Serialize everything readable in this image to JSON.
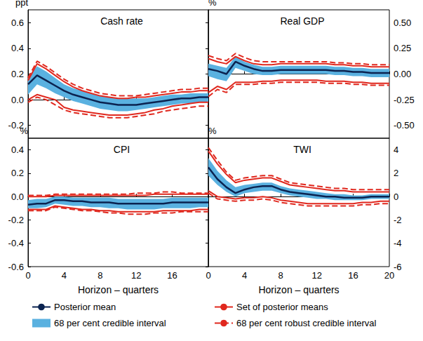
{
  "chart_data": [
    {
      "type": "line",
      "title": "Cash rate",
      "ylabel": "ppt",
      "legend": "bottom",
      "grid": false,
      "tick_labels": "y",
      "x": [
        0,
        1,
        2,
        3,
        4,
        5,
        6,
        7,
        8,
        9,
        10,
        11,
        12,
        13,
        14,
        15,
        16,
        17,
        18,
        19,
        20
      ],
      "xlim": [
        0,
        20
      ],
      "xticks": [
        0,
        4,
        8,
        12,
        16
      ],
      "ylim": [
        -0.3,
        0.7
      ],
      "yticks": [
        0.6,
        0.4,
        0.2,
        {
          "value": 0,
          "label": "0.0"
        },
        -0.2
      ],
      "series": [
        {
          "name": "Posterior mean",
          "type": "line",
          "color": "#0b2350",
          "line_style": "solid",
          "values": [
            0.12,
            0.19,
            0.15,
            0.11,
            0.07,
            0.04,
            0.02,
            0.0,
            -0.02,
            -0.03,
            -0.04,
            -0.04,
            -0.04,
            -0.03,
            -0.02,
            -0.01,
            0.0,
            0.01,
            0.01,
            0.02,
            0.02
          ]
        },
        {
          "name": "68 per cent credible interval",
          "type": "area",
          "color": "#5ab1e0",
          "lower": [
            0.04,
            0.12,
            0.09,
            0.05,
            0.02,
            -0.01,
            -0.03,
            -0.05,
            -0.07,
            -0.08,
            -0.09,
            -0.09,
            -0.08,
            -0.07,
            -0.06,
            -0.05,
            -0.04,
            -0.03,
            -0.03,
            -0.02,
            -0.02
          ],
          "upper": [
            0.18,
            0.26,
            0.22,
            0.17,
            0.12,
            0.09,
            0.07,
            0.05,
            0.03,
            0.02,
            0.01,
            0.01,
            0.01,
            0.01,
            0.02,
            0.03,
            0.04,
            0.04,
            0.05,
            0.05,
            0.05
          ]
        },
        {
          "name": "Set of posterior means",
          "type": "bounds",
          "color": "#e0281e",
          "line_style": "solid",
          "lower": [
            0.0,
            0.04,
            0.02,
            0.0,
            -0.06,
            -0.08,
            -0.09,
            -0.1,
            -0.11,
            -0.12,
            -0.12,
            -0.12,
            -0.11,
            -0.1,
            -0.08,
            -0.07,
            -0.05,
            -0.04,
            -0.03,
            -0.02,
            -0.02
          ],
          "upper": [
            0.15,
            0.28,
            0.24,
            0.19,
            0.14,
            0.1,
            0.07,
            0.05,
            0.03,
            0.02,
            0.01,
            0.01,
            0.02,
            0.02,
            0.03,
            0.04,
            0.05,
            0.06,
            0.06,
            0.07,
            0.07
          ]
        },
        {
          "name": "68 per cent robust credible interval",
          "type": "bounds",
          "color": "#e0281e",
          "line_style": "dashed",
          "lower": [
            -0.02,
            0.02,
            0.0,
            -0.04,
            -0.08,
            -0.1,
            -0.11,
            -0.12,
            -0.13,
            -0.14,
            -0.14,
            -0.14,
            -0.13,
            -0.12,
            -0.11,
            -0.09,
            -0.08,
            -0.07,
            -0.06,
            -0.05,
            -0.05
          ],
          "upper": [
            0.17,
            0.3,
            0.26,
            0.21,
            0.16,
            0.12,
            0.09,
            0.07,
            0.05,
            0.04,
            0.03,
            0.03,
            0.03,
            0.04,
            0.05,
            0.06,
            0.07,
            0.08,
            0.08,
            0.09,
            0.09
          ]
        }
      ]
    },
    {
      "type": "line",
      "title": "Real GDP",
      "ylabel": "%",
      "legend": "bottom",
      "grid": false,
      "tick_labels": "y",
      "x": [
        0,
        1,
        2,
        3,
        4,
        5,
        6,
        7,
        8,
        9,
        10,
        11,
        12,
        13,
        14,
        15,
        16,
        17,
        18,
        19,
        20
      ],
      "xlim": [
        0,
        20
      ],
      "xticks": [
        0,
        4,
        8,
        12,
        16,
        20
      ],
      "ylim": [
        -0.625,
        0.625
      ],
      "yticks": [
        {
          "value": 0.5,
          "label": "0.50"
        },
        0.25,
        {
          "value": 0,
          "label": "0.00"
        },
        -0.25,
        {
          "value": -0.5,
          "label": "-0.50"
        }
      ],
      "series": [
        {
          "name": "Posterior mean",
          "type": "line",
          "color": "#0b2350",
          "line_style": "solid",
          "values": [
            0.05,
            0.03,
            0.0,
            0.12,
            0.08,
            0.05,
            0.03,
            0.03,
            0.04,
            0.04,
            0.04,
            0.04,
            0.04,
            0.04,
            0.03,
            0.03,
            0.02,
            0.02,
            0.01,
            0.01,
            0.01
          ]
        },
        {
          "name": "68 per cent credible interval",
          "type": "area",
          "color": "#5ab1e0",
          "lower": [
            -0.02,
            -0.05,
            -0.07,
            0.06,
            0.03,
            0.0,
            -0.01,
            -0.01,
            0.0,
            0.0,
            0.0,
            0.0,
            0.0,
            0.0,
            -0.01,
            -0.01,
            -0.02,
            -0.02,
            -0.03,
            -0.03,
            -0.03
          ],
          "upper": [
            0.1,
            0.08,
            0.06,
            0.17,
            0.12,
            0.09,
            0.07,
            0.07,
            0.08,
            0.08,
            0.08,
            0.08,
            0.08,
            0.08,
            0.07,
            0.07,
            0.06,
            0.06,
            0.05,
            0.05,
            0.05
          ]
        },
        {
          "name": "Set of posterior means",
          "type": "bounds",
          "color": "#e0281e",
          "line_style": "solid",
          "lower": [
            -0.18,
            -0.12,
            -0.15,
            -0.08,
            -0.08,
            -0.08,
            -0.07,
            -0.07,
            -0.06,
            -0.06,
            -0.06,
            -0.06,
            -0.06,
            -0.07,
            -0.07,
            -0.07,
            -0.08,
            -0.08,
            -0.09,
            -0.09,
            -0.09
          ],
          "upper": [
            0.15,
            0.12,
            0.1,
            0.17,
            0.13,
            0.1,
            0.09,
            0.09,
            0.1,
            0.1,
            0.1,
            0.1,
            0.1,
            0.1,
            0.09,
            0.09,
            0.08,
            0.08,
            0.07,
            0.07,
            0.07
          ]
        },
        {
          "name": "68 per cent robust credible interval",
          "type": "bounds",
          "color": "#e0281e",
          "line_style": "dashed",
          "lower": [
            -0.22,
            -0.15,
            -0.18,
            -0.1,
            -0.1,
            -0.1,
            -0.09,
            -0.09,
            -0.08,
            -0.08,
            -0.08,
            -0.08,
            -0.08,
            -0.09,
            -0.09,
            -0.09,
            -0.1,
            -0.1,
            -0.11,
            -0.11,
            -0.11
          ],
          "upper": [
            0.18,
            0.15,
            0.13,
            0.2,
            0.16,
            0.13,
            0.12,
            0.12,
            0.12,
            0.12,
            0.12,
            0.12,
            0.12,
            0.12,
            0.11,
            0.11,
            0.1,
            0.1,
            0.09,
            0.09,
            0.09
          ]
        }
      ]
    },
    {
      "type": "line",
      "title": "CPI",
      "ylabel": "%",
      "xlabel": "Horizon – quarters",
      "legend": "bottom",
      "grid": false,
      "x": [
        0,
        1,
        2,
        3,
        4,
        5,
        6,
        7,
        8,
        9,
        10,
        11,
        12,
        13,
        14,
        15,
        16,
        17,
        18,
        19,
        20
      ],
      "xlim": [
        0,
        20
      ],
      "xticks": [
        0,
        4,
        8,
        12,
        16
      ],
      "ylim": [
        -0.6,
        0.5
      ],
      "yticks": [
        0.4,
        0.2,
        {
          "value": 0,
          "label": "0.0"
        },
        -0.2,
        -0.4,
        -0.6
      ],
      "series": [
        {
          "name": "Posterior mean",
          "type": "line",
          "color": "#0b2350",
          "line_style": "solid",
          "values": [
            -0.07,
            -0.06,
            -0.06,
            -0.03,
            -0.03,
            -0.04,
            -0.04,
            -0.05,
            -0.05,
            -0.05,
            -0.06,
            -0.06,
            -0.06,
            -0.06,
            -0.06,
            -0.06,
            -0.05,
            -0.05,
            -0.05,
            -0.05,
            -0.05
          ]
        },
        {
          "name": "68 per cent credible interval",
          "type": "area",
          "color": "#5ab1e0",
          "lower": [
            -0.1,
            -0.1,
            -0.09,
            -0.06,
            -0.07,
            -0.08,
            -0.08,
            -0.09,
            -0.09,
            -0.1,
            -0.1,
            -0.11,
            -0.11,
            -0.11,
            -0.11,
            -0.1,
            -0.1,
            -0.1,
            -0.1,
            -0.09,
            -0.09
          ],
          "upper": [
            -0.03,
            -0.02,
            -0.02,
            0.0,
            0.0,
            -0.01,
            -0.01,
            -0.01,
            -0.01,
            -0.01,
            -0.02,
            -0.02,
            -0.02,
            -0.02,
            -0.02,
            -0.02,
            -0.01,
            -0.01,
            -0.01,
            -0.01,
            -0.01
          ]
        },
        {
          "name": "Set of posterior means",
          "type": "bounds",
          "color": "#e0281e",
          "line_style": "solid",
          "lower": [
            -0.11,
            -0.11,
            -0.11,
            -0.08,
            -0.09,
            -0.1,
            -0.11,
            -0.11,
            -0.12,
            -0.12,
            -0.13,
            -0.13,
            -0.13,
            -0.13,
            -0.13,
            -0.12,
            -0.12,
            -0.12,
            -0.12,
            -0.11,
            -0.11
          ],
          "upper": [
            0.0,
            0.0,
            0.0,
            0.01,
            0.01,
            0.01,
            0.01,
            0.01,
            0.01,
            0.01,
            0.01,
            0.01,
            0.01,
            0.01,
            0.02,
            0.02,
            0.02,
            0.02,
            0.02,
            0.02,
            0.02
          ]
        },
        {
          "name": "68 per cent robust credible interval",
          "type": "bounds",
          "color": "#e0281e",
          "line_style": "dashed",
          "lower": [
            -0.12,
            -0.12,
            -0.12,
            -0.09,
            -0.1,
            -0.11,
            -0.12,
            -0.12,
            -0.13,
            -0.14,
            -0.14,
            -0.15,
            -0.15,
            -0.15,
            -0.14,
            -0.14,
            -0.14,
            -0.13,
            -0.13,
            -0.13,
            -0.13
          ],
          "upper": [
            0.01,
            0.01,
            0.01,
            0.02,
            0.02,
            0.02,
            0.02,
            0.02,
            0.02,
            0.02,
            0.02,
            0.02,
            0.03,
            0.03,
            0.03,
            0.04,
            0.04,
            0.03,
            0.03,
            0.03,
            0.03
          ]
        }
      ]
    },
    {
      "type": "line",
      "title": "TWI",
      "ylabel": "%",
      "xlabel": "Horizon – quarters",
      "legend": "bottom",
      "grid": false,
      "x": [
        0,
        1,
        2,
        3,
        4,
        5,
        6,
        7,
        8,
        9,
        10,
        11,
        12,
        13,
        14,
        15,
        16,
        17,
        18,
        19,
        20
      ],
      "xlim": [
        0,
        20
      ],
      "xticks": [
        0,
        4,
        8,
        12,
        16,
        20
      ],
      "ylim": [
        -6,
        5
      ],
      "yticks": [
        4,
        2,
        0,
        -2,
        -4,
        -6
      ],
      "series": [
        {
          "name": "Posterior mean",
          "type": "line",
          "color": "#0b2350",
          "line_style": "solid",
          "values": [
            2.5,
            1.5,
            0.8,
            0.3,
            0.6,
            0.8,
            0.9,
            0.9,
            0.6,
            0.4,
            0.3,
            0.2,
            0.1,
            0.0,
            0.0,
            -0.1,
            -0.1,
            -0.1,
            0.0,
            0.0,
            0.0
          ]
        },
        {
          "name": "68 per cent credible interval",
          "type": "area",
          "color": "#5ab1e0",
          "lower": [
            1.8,
            1.0,
            0.4,
            0.0,
            0.3,
            0.4,
            0.5,
            0.5,
            0.3,
            0.1,
            0.0,
            -0.1,
            -0.2,
            -0.2,
            -0.3,
            -0.3,
            -0.3,
            -0.3,
            -0.2,
            -0.2,
            -0.2
          ],
          "upper": [
            3.3,
            2.2,
            1.4,
            0.8,
            1.0,
            1.1,
            1.2,
            1.2,
            0.9,
            0.7,
            0.6,
            0.5,
            0.4,
            0.3,
            0.2,
            0.2,
            0.1,
            0.1,
            0.2,
            0.2,
            0.2
          ]
        },
        {
          "name": "Set of posterior means",
          "type": "bounds",
          "color": "#e0281e",
          "line_style": "solid",
          "lower": [
            0.5,
            0.0,
            -0.1,
            -0.2,
            -0.1,
            -0.1,
            0.0,
            -0.1,
            -0.3,
            -0.4,
            -0.5,
            -0.6,
            -0.6,
            -0.6,
            -0.6,
            -0.6,
            -0.6,
            -0.5,
            -0.5,
            -0.4,
            -0.4
          ],
          "upper": [
            3.9,
            2.8,
            1.9,
            1.2,
            1.4,
            1.5,
            1.6,
            1.6,
            1.3,
            1.0,
            0.9,
            0.8,
            0.7,
            0.6,
            0.5,
            0.5,
            0.4,
            0.4,
            0.4,
            0.4,
            0.4
          ]
        },
        {
          "name": "68 per cent robust credible interval",
          "type": "bounds",
          "color": "#e0281e",
          "line_style": "dashed",
          "lower": [
            0.3,
            -0.2,
            -0.3,
            -0.4,
            -0.3,
            -0.3,
            -0.2,
            -0.3,
            -0.5,
            -0.6,
            -0.7,
            -0.8,
            -0.8,
            -0.8,
            -0.8,
            -0.8,
            -0.8,
            -0.7,
            -0.7,
            -0.6,
            -0.6
          ],
          "upper": [
            4.2,
            3.1,
            2.1,
            1.4,
            1.6,
            1.7,
            1.8,
            1.8,
            1.5,
            1.2,
            1.1,
            1.0,
            0.9,
            0.8,
            0.7,
            0.7,
            0.6,
            0.6,
            0.6,
            0.6,
            0.6
          ]
        }
      ]
    }
  ]
}
